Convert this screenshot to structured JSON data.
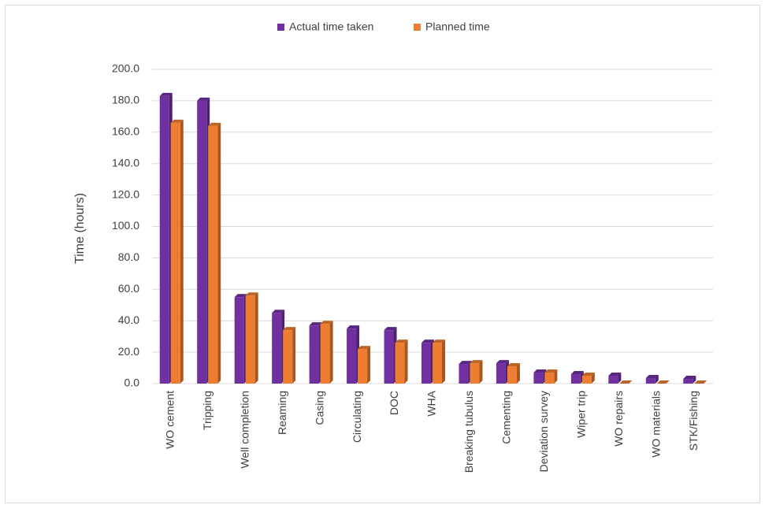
{
  "chart_data": {
    "type": "bar3d",
    "y_label": "Time (hours)",
    "categories": [
      "WO cement",
      "Tripping",
      "Well completion",
      "Reaming",
      "Casing",
      "Circulating",
      "DOC",
      "WHA",
      "Breaking tubulus",
      "Cementing",
      "Deviation survey",
      "Wiper trip",
      "WO repairs",
      "WO materials",
      "STK/Fishing"
    ],
    "series": [
      {
        "name": "Actual time taken",
        "color": "#7030a0",
        "values": [
          183,
          180,
          55,
          45,
          37,
          35,
          34,
          26,
          12.5,
          13,
          7,
          6,
          5,
          3.5,
          3
        ]
      },
      {
        "name": "Planned time",
        "color": "#ed7d31",
        "values": [
          166,
          164,
          56,
          34,
          38,
          22,
          26,
          26,
          13,
          11,
          7,
          5,
          0,
          0,
          0
        ]
      }
    ],
    "ylim": [
      0,
      200
    ],
    "yticks": [
      {
        "value": 0,
        "label": "0.0"
      },
      {
        "value": 20,
        "label": "20.0"
      },
      {
        "value": 40,
        "label": "40.0"
      },
      {
        "value": 60,
        "label": "60.0"
      },
      {
        "value": 80,
        "label": "80.0"
      },
      {
        "value": 100,
        "label": "100.0"
      },
      {
        "value": 120,
        "label": "120.0"
      },
      {
        "value": 140,
        "label": "140.0"
      },
      {
        "value": 160,
        "label": "160.0"
      },
      {
        "value": 180,
        "label": "180.0"
      },
      {
        "value": 200,
        "label": "200.0"
      }
    ],
    "grid": true,
    "legend": "top"
  }
}
